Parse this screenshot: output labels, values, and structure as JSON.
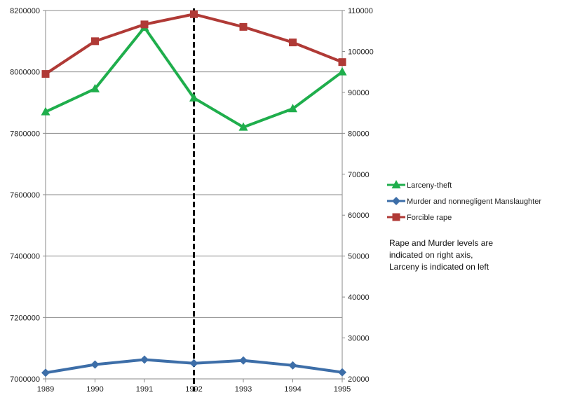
{
  "chart_data": {
    "type": "line",
    "title": "",
    "x": [
      "1989",
      "1990",
      "1991",
      "1992",
      "1993",
      "1994",
      "1995"
    ],
    "y_left": {
      "min": 7000000,
      "max": 8200000,
      "step": 200000,
      "tick_labels": [
        "7000000",
        "7200000",
        "7400000",
        "7600000",
        "7800000",
        "8000000",
        "8200000"
      ]
    },
    "y_right": {
      "min": 20000,
      "max": 110000,
      "step": 10000,
      "tick_labels": [
        "20000",
        "30000",
        "40000",
        "50000",
        "60000",
        "70000",
        "80000",
        "90000",
        "100000",
        "110000"
      ]
    },
    "grid": "horizontal",
    "vertical_marker_x": "1992",
    "series": [
      {
        "name": "Larceny-theft",
        "axis": "left",
        "color": "#1fae4c",
        "marker": "triangle",
        "values": [
          7870000,
          7945000,
          8145000,
          7915000,
          7820000,
          7880000,
          8000000
        ]
      },
      {
        "name": "Murder and nonnegligent Manslaughter",
        "axis": "right",
        "color": "#3d6ea8",
        "marker": "diamond",
        "values": [
          21500,
          23500,
          24700,
          23800,
          24500,
          23300,
          21600
        ]
      },
      {
        "name": "Forcible rape",
        "axis": "right",
        "color": "#b03a36",
        "marker": "square",
        "values": [
          94500,
          102500,
          106600,
          109100,
          106000,
          102200,
          97400
        ]
      }
    ],
    "legend_position": "right",
    "annotation": [
      "Rape and Murder levels are",
      "indicated on right axis,",
      "Larceny is indicated on left"
    ]
  }
}
